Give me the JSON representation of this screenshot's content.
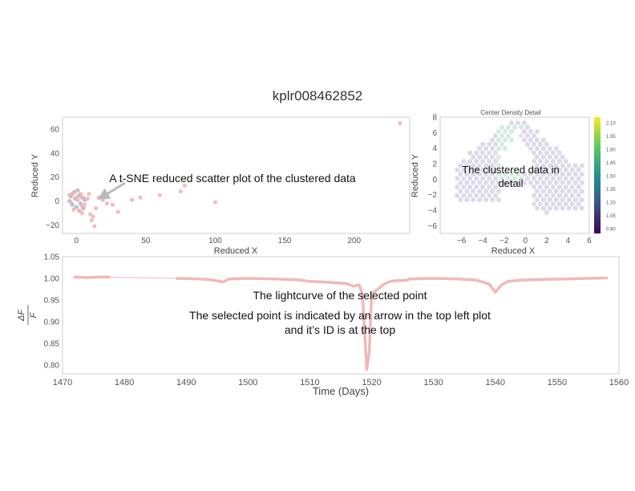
{
  "page_title": "kplr008462852",
  "chart_data": [
    {
      "type": "scatter",
      "xlabel": "Reduced X",
      "ylabel": "Reduced Y",
      "xlim": [
        -10,
        240
      ],
      "ylim": [
        -27,
        70
      ],
      "xticks": [
        "0",
        "50",
        "100",
        "150",
        "200"
      ],
      "xtick_values": [
        0,
        50,
        100,
        150,
        200
      ],
      "yticks": [
        "−20",
        "0",
        "20",
        "40",
        "60"
      ],
      "ytick_values": [
        -20,
        0,
        20,
        40,
        60
      ],
      "annotation": "A t-SNE reduced scatter plot of the clustered data",
      "arrow": true,
      "grid": false,
      "colors": {
        "cluster_a": "#a9b4cf",
        "cluster_b": "#f0b3b3",
        "arrow": "#b9b9b9"
      },
      "x": [
        -5,
        -4,
        -3,
        -2,
        -1,
        0,
        1,
        2,
        3,
        4,
        5,
        6,
        -4,
        -3,
        -1,
        0,
        2,
        3,
        4,
        -5,
        -2,
        1,
        3,
        5,
        2,
        4,
        6,
        8,
        10,
        12,
        14,
        9,
        11,
        13,
        16,
        19,
        22,
        26,
        30,
        40,
        46,
        60,
        75,
        78,
        100,
        233
      ],
      "y": [
        0,
        4,
        -3,
        7,
        2,
        -5,
        9,
        5,
        -2,
        3,
        -6,
        1,
        -1,
        6,
        8,
        3,
        -8,
        6,
        -4,
        5,
        -7,
        1,
        4,
        3,
        -8,
        -10,
        -3,
        2,
        -11,
        -13,
        -6,
        6,
        -16,
        -21,
        3,
        1,
        -2,
        -3,
        -9,
        1,
        3,
        5,
        8,
        13,
        -1,
        65
      ],
      "group": [
        "a",
        "a",
        "a",
        "a",
        "a",
        "a",
        "a",
        "a",
        "a",
        "a",
        "a",
        "a",
        "b",
        "b",
        "b",
        "b",
        "b",
        "b",
        "b",
        "b",
        "b",
        "b",
        "b",
        "b",
        "b",
        "b",
        "b",
        "b",
        "b",
        "b",
        "b",
        "b",
        "b",
        "b",
        "b",
        "b",
        "b",
        "b",
        "b",
        "b",
        "b",
        "b",
        "b",
        "b",
        "b",
        "b"
      ]
    },
    {
      "type": "heatmap",
      "title": "Center Density Detail",
      "xlabel": "Reduced X",
      "ylabel": "Reduced Y",
      "xlim": [
        -8,
        6
      ],
      "ylim": [
        -7,
        8
      ],
      "xticks": [
        "−6",
        "−4",
        "−2",
        "0",
        "2",
        "4",
        "6"
      ],
      "xtick_values": [
        -6,
        -4,
        -2,
        0,
        2,
        4,
        6
      ],
      "yticks": [
        "−6",
        "−4",
        "−2",
        "0",
        "2",
        "4",
        "6",
        "8"
      ],
      "ytick_values": [
        -6,
        -4,
        -2,
        0,
        2,
        4,
        6,
        8
      ],
      "annotation_lines": [
        "The clustered data in",
        "detail"
      ],
      "colorbar_ticks": [
        "2.10",
        "1.95",
        "1.80",
        "1.65",
        "1.50",
        "1.35",
        "1.20",
        "1.05",
        "0.90"
      ],
      "colorbar_values": [
        2.1,
        1.95,
        1.8,
        1.65,
        1.5,
        1.35,
        1.2,
        1.05,
        0.9
      ],
      "colorbar_range": [
        0.85,
        2.17
      ],
      "colormap": [
        "#440154",
        "#3b528b",
        "#21918c",
        "#5ec962",
        "#fde725"
      ]
    },
    {
      "type": "line",
      "xlabel": "Time (Days)",
      "ylabel": "ΔF / F",
      "ylabel_num": "ΔF",
      "ylabel_den": "F",
      "xlim": [
        1470,
        1560
      ],
      "ylim": [
        0.78,
        1.05
      ],
      "xticks": [
        "1470",
        "1480",
        "1490",
        "1500",
        "1510",
        "1520",
        "1530",
        "1540",
        "1550",
        "1560"
      ],
      "xtick_values": [
        1470,
        1480,
        1490,
        1500,
        1510,
        1520,
        1530,
        1540,
        1550,
        1560
      ],
      "yticks": [
        "1.05",
        "1.00",
        "0.95",
        "0.90",
        "0.85",
        "0.80"
      ],
      "ytick_values": [
        1.05,
        1.0,
        0.95,
        0.9,
        0.85,
        0.8
      ],
      "annotation_lines": [
        "The lightcurve of the selected point",
        "The selected point is indicated by an arrow in the top left plot",
        "and it’s ID is at the top"
      ],
      "line_color": "#f2b8b8",
      "segments": [
        {
          "x": [
            1472,
            1474,
            1476,
            1477.5
          ],
          "y": [
            1.003,
            1.002,
            1.003,
            1.003
          ]
        },
        {
          "x": [
            1477.5,
            1488.5
          ],
          "y": [
            1.003,
            1.0
          ]
        },
        {
          "x": [
            1488.5,
            1492,
            1494,
            1496,
            1497,
            1500,
            1504,
            1508,
            1510,
            1512,
            1514,
            1516,
            1517,
            1518,
            1518.5,
            1519.2,
            1519.6,
            1520,
            1521,
            1522,
            1523,
            1524,
            1525.8
          ],
          "y": [
            1.0,
            0.999,
            0.997,
            0.992,
            0.999,
            1.0,
            0.999,
            0.997,
            0.993,
            0.992,
            0.99,
            0.988,
            0.982,
            0.985,
            0.965,
            0.79,
            0.83,
            0.965,
            0.975,
            0.987,
            0.993,
            0.995,
            0.996
          ]
        },
        {
          "x": [
            1526,
            1530,
            1534,
            1537,
            1539,
            1540,
            1541,
            1542,
            1544,
            1548,
            1552,
            1555,
            1558
          ],
          "y": [
            0.999,
            1.0,
            0.999,
            0.996,
            0.987,
            0.968,
            0.985,
            0.993,
            0.996,
            0.998,
            0.999,
            1.0,
            1.001
          ]
        }
      ]
    }
  ]
}
